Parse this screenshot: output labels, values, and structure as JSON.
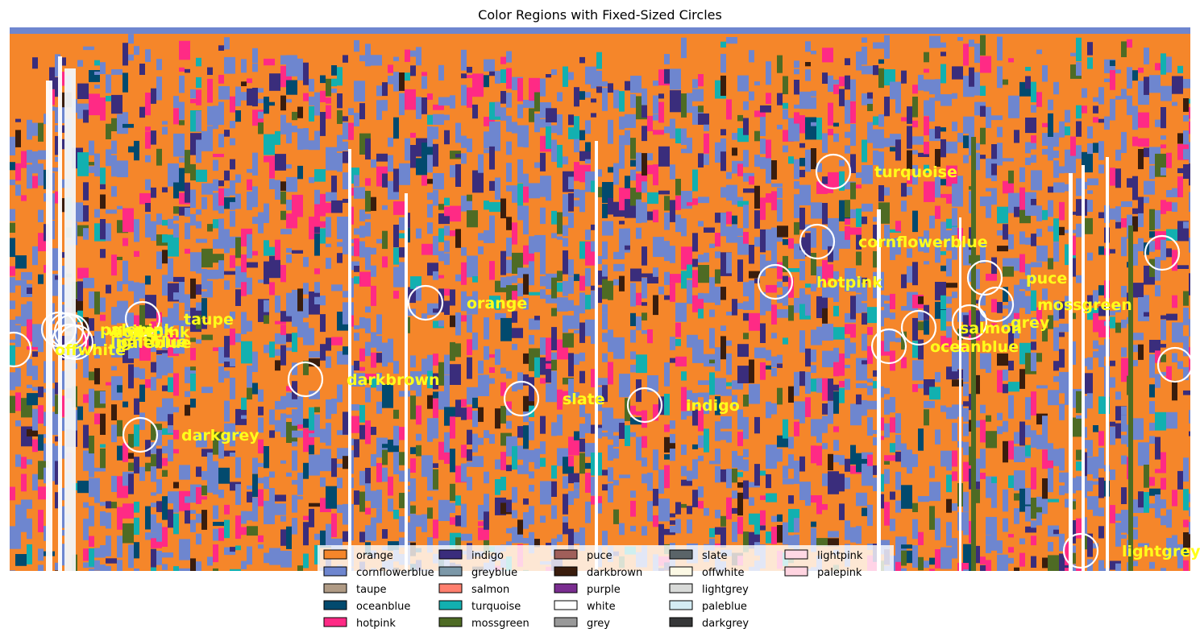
{
  "chart_data": {
    "type": "scatter",
    "title": "Color Regions with Fixed-Sized Circles",
    "xlabel": "",
    "ylabel": "",
    "xlim": [
      0,
      1465
    ],
    "ylim": [
      0,
      675
    ],
    "y_inverted": true,
    "axes_visible": false,
    "grid": false,
    "legend_placement": "lower center",
    "legend_columns": 5,
    "background_colors": {
      "base": "#f5862a",
      "blocks": "#6e86cf",
      "indigo": "#3a2d7c",
      "hotpink": "#ff2a85",
      "turquoise": "#12b0b0",
      "white": "#ffffff",
      "mossgreen": "#4e6b24",
      "oceanblue": "#024a6e",
      "darkbrown": "#3a1d0d"
    },
    "circle_style": {
      "edge_color": "#ffffff",
      "label_color": "#ffff1a"
    },
    "regions": [
      {
        "label": "turquoise",
        "x": 1022,
        "y": 179
      },
      {
        "label": "cornflowerblue",
        "x": 1002,
        "y": 266
      },
      {
        "label": "greyblue",
        "x": 1430,
        "y": 280
      },
      {
        "label": "hotpink",
        "x": 950,
        "y": 316
      },
      {
        "label": "puce",
        "x": 1210,
        "y": 311
      },
      {
        "label": "orange",
        "x": 516,
        "y": 342
      },
      {
        "label": "mossgreen",
        "x": 1224,
        "y": 344
      },
      {
        "label": "taupe",
        "x": 165,
        "y": 362
      },
      {
        "label": "palepink",
        "x": 61,
        "y": 375
      },
      {
        "label": "white",
        "x": 70,
        "y": 376
      },
      {
        "label": "lightpink",
        "x": 77,
        "y": 378
      },
      {
        "label": "grey",
        "x": 1191,
        "y": 366
      },
      {
        "label": "salmon",
        "x": 1128,
        "y": 373
      },
      {
        "label": "lightblue",
        "x": 74,
        "y": 390
      },
      {
        "label": "paleblue",
        "x": 82,
        "y": 391
      },
      {
        "label": "offwhite",
        "x": 5,
        "y": 400
      },
      {
        "label": "oceanblue",
        "x": 1091,
        "y": 396
      },
      {
        "label": "purple",
        "x": 1446,
        "y": 419
      },
      {
        "label": "darkbrown",
        "x": 367,
        "y": 437
      },
      {
        "label": "slate",
        "x": 635,
        "y": 461
      },
      {
        "label": "indigo",
        "x": 788,
        "y": 469
      },
      {
        "label": "darkgrey",
        "x": 162,
        "y": 506
      },
      {
        "label": "lightgrey",
        "x": 1329,
        "y": 650
      }
    ],
    "legend": [
      {
        "name": "orange",
        "color": "#f5862a"
      },
      {
        "name": "cornflowerblue",
        "color": "#6e86cf"
      },
      {
        "name": "taupe",
        "color": "#b09b85"
      },
      {
        "name": "oceanblue",
        "color": "#024a6e"
      },
      {
        "name": "hotpink",
        "color": "#ff2a85"
      },
      {
        "name": "indigo",
        "color": "#3a2d7c"
      },
      {
        "name": "greyblue",
        "color": "#7c98a8"
      },
      {
        "name": "salmon",
        "color": "#ff7f6e"
      },
      {
        "name": "turquoise",
        "color": "#12b0b0"
      },
      {
        "name": "mossgreen",
        "color": "#4e6b24"
      },
      {
        "name": "puce",
        "color": "#a05f5a"
      },
      {
        "name": "darkbrown",
        "color": "#3a1d0d"
      },
      {
        "name": "purple",
        "color": "#7a2d90"
      },
      {
        "name": "white",
        "color": "#ffffff"
      },
      {
        "name": "grey",
        "color": "#999999"
      },
      {
        "name": "slate",
        "color": "#5a6468"
      },
      {
        "name": "offwhite",
        "color": "#fbf8e4"
      },
      {
        "name": "lightgrey",
        "color": "#d8dad8"
      },
      {
        "name": "paleblue",
        "color": "#d4ecf4"
      },
      {
        "name": "darkgrey",
        "color": "#363738"
      },
      {
        "name": "lightpink",
        "color": "#ffd8e4"
      },
      {
        "name": "palepink",
        "color": "#ffd4e0"
      }
    ]
  }
}
